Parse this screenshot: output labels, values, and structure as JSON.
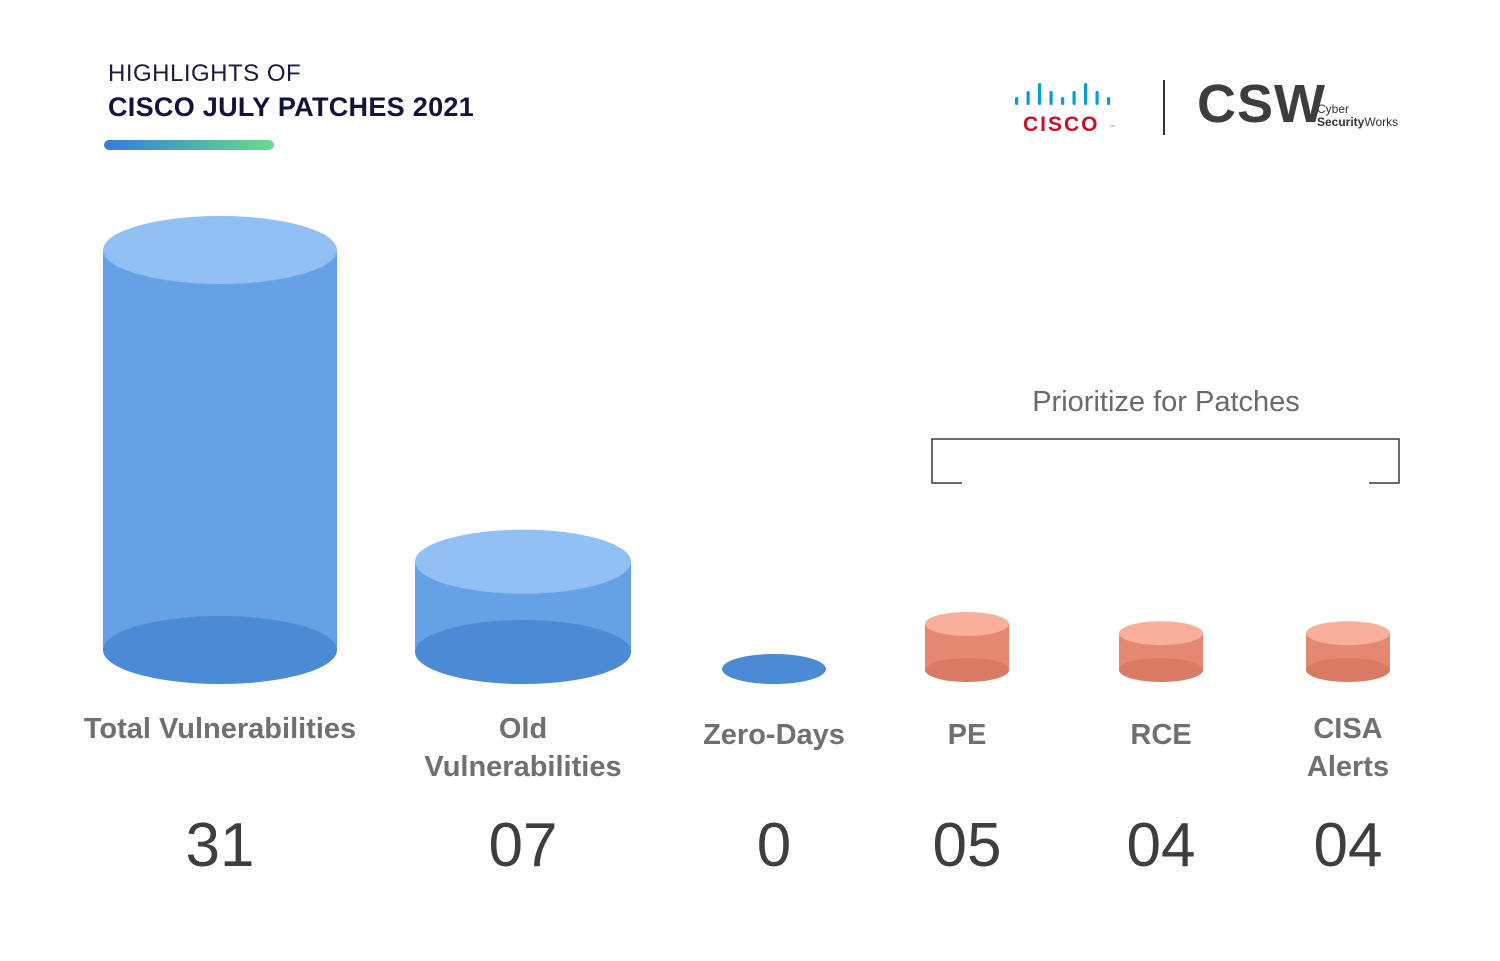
{
  "header": {
    "title_small": "HIGHLIGHTS OF",
    "title_main": "CISCO JULY PATCHES 2021"
  },
  "logos": {
    "cisco": "CISCO",
    "cisco_tm": "™",
    "csw": "CSW",
    "csw_line1": "Cyber",
    "csw_line2_bold": "Security",
    "csw_line2_rest": "Works"
  },
  "colors": {
    "blue_top": "#92c0f5",
    "blue_body": "#67a1e5",
    "blue_bottom": "#4b8ad5",
    "red_top": "#f8af9b",
    "red_body": "#e58872",
    "red_bottom": "#d97a65",
    "accent_gradient": [
      "#3a7bd5",
      "#6dd98e"
    ],
    "cisco_bars": "#049fd9",
    "cisco_text": "#c8102e"
  },
  "chart_data": {
    "type": "bar",
    "categories": [
      "Total Vulnerabilities",
      "Old\nVulnerabilities",
      "Zero-Days",
      "PE",
      "RCE",
      "CISA\nAlerts"
    ],
    "values": [
      31,
      7,
      0,
      5,
      4,
      4
    ],
    "value_labels": [
      "31",
      "07",
      "0",
      "05",
      "04",
      "04"
    ],
    "series_colors": [
      "blue",
      "blue",
      "blue",
      "red",
      "red",
      "red"
    ],
    "bracket_label": "Prioritize for Patches",
    "ylim": [
      0,
      31
    ]
  }
}
